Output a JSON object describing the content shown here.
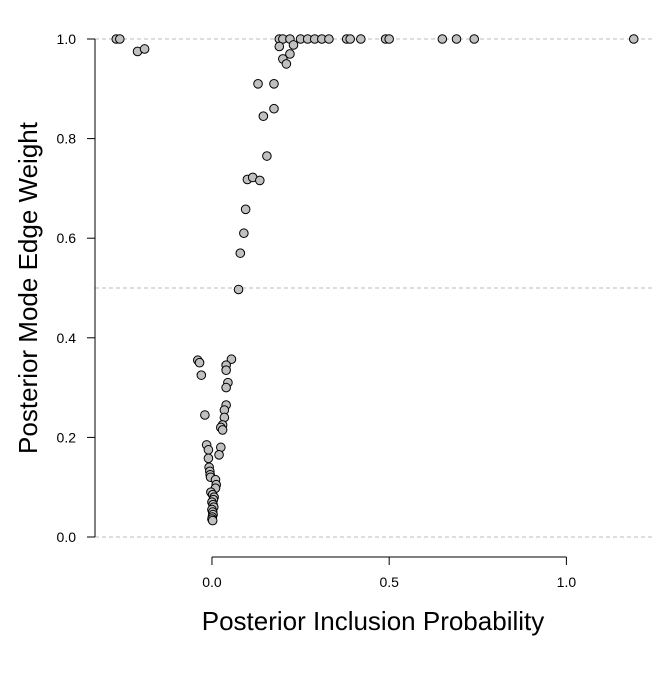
{
  "chart_data": {
    "type": "scatter",
    "xlabel": "Posterior Inclusion Probability",
    "ylabel": "Posterior Mode Edge Weight",
    "xlim": [
      -0.33,
      1.25
    ],
    "ylim": [
      0.0,
      1.0
    ],
    "x_ticks": [
      {
        "value": 0.0,
        "label": "0.0"
      },
      {
        "value": 0.5,
        "label": "0.5"
      },
      {
        "value": 1.0,
        "label": "1.0"
      }
    ],
    "y_ticks": [
      {
        "value": 0.0,
        "label": "0.0"
      },
      {
        "value": 0.2,
        "label": "0.2"
      },
      {
        "value": 0.4,
        "label": "0.4"
      },
      {
        "value": 0.6,
        "label": "0.6"
      },
      {
        "value": 0.8,
        "label": "0.8"
      },
      {
        "value": 1.0,
        "label": "1.0"
      }
    ],
    "reference_lines_y": [
      0.0,
      0.5,
      1.0
    ],
    "grid": false,
    "point_color": "#c0c0c0",
    "point_edge_color": "#000000",
    "reference_line_color": "#bdbdbd",
    "points": [
      {
        "x": -0.27,
        "y": 1.0
      },
      {
        "x": -0.26,
        "y": 1.0
      },
      {
        "x": -0.21,
        "y": 0.975
      },
      {
        "x": -0.19,
        "y": 0.98
      },
      {
        "x": 0.19,
        "y": 1.0
      },
      {
        "x": 0.2,
        "y": 1.0
      },
      {
        "x": 0.22,
        "y": 1.0
      },
      {
        "x": 0.25,
        "y": 1.0
      },
      {
        "x": 0.27,
        "y": 1.0
      },
      {
        "x": 0.29,
        "y": 1.0
      },
      {
        "x": 0.31,
        "y": 1.0
      },
      {
        "x": 0.33,
        "y": 1.0
      },
      {
        "x": 0.38,
        "y": 1.0
      },
      {
        "x": 0.39,
        "y": 1.0
      },
      {
        "x": 0.42,
        "y": 1.0
      },
      {
        "x": 0.49,
        "y": 1.0
      },
      {
        "x": 0.5,
        "y": 1.0
      },
      {
        "x": 0.65,
        "y": 1.0
      },
      {
        "x": 0.69,
        "y": 1.0
      },
      {
        "x": 0.74,
        "y": 1.0
      },
      {
        "x": 1.19,
        "y": 1.0
      },
      {
        "x": 0.19,
        "y": 0.985
      },
      {
        "x": 0.23,
        "y": 0.988
      },
      {
        "x": 0.22,
        "y": 0.97
      },
      {
        "x": 0.2,
        "y": 0.96
      },
      {
        "x": 0.21,
        "y": 0.95
      },
      {
        "x": 0.13,
        "y": 0.91
      },
      {
        "x": 0.175,
        "y": 0.91
      },
      {
        "x": 0.175,
        "y": 0.86
      },
      {
        "x": 0.145,
        "y": 0.845
      },
      {
        "x": 0.155,
        "y": 0.765
      },
      {
        "x": 0.1,
        "y": 0.718
      },
      {
        "x": 0.115,
        "y": 0.722
      },
      {
        "x": 0.135,
        "y": 0.716
      },
      {
        "x": 0.095,
        "y": 0.658
      },
      {
        "x": 0.09,
        "y": 0.61
      },
      {
        "x": 0.08,
        "y": 0.57
      },
      {
        "x": 0.075,
        "y": 0.497
      },
      {
        "x": -0.04,
        "y": 0.355
      },
      {
        "x": -0.035,
        "y": 0.35
      },
      {
        "x": 0.055,
        "y": 0.357
      },
      {
        "x": 0.04,
        "y": 0.345
      },
      {
        "x": 0.04,
        "y": 0.335
      },
      {
        "x": -0.03,
        "y": 0.325
      },
      {
        "x": 0.045,
        "y": 0.31
      },
      {
        "x": 0.04,
        "y": 0.3
      },
      {
        "x": 0.04,
        "y": 0.265
      },
      {
        "x": 0.035,
        "y": 0.255
      },
      {
        "x": -0.02,
        "y": 0.245
      },
      {
        "x": 0.035,
        "y": 0.24
      },
      {
        "x": 0.03,
        "y": 0.225
      },
      {
        "x": 0.025,
        "y": 0.22
      },
      {
        "x": 0.03,
        "y": 0.215
      },
      {
        "x": -0.015,
        "y": 0.185
      },
      {
        "x": 0.025,
        "y": 0.18
      },
      {
        "x": -0.01,
        "y": 0.175
      },
      {
        "x": 0.02,
        "y": 0.165
      },
      {
        "x": -0.01,
        "y": 0.158
      },
      {
        "x": -0.008,
        "y": 0.14
      },
      {
        "x": -0.006,
        "y": 0.132
      },
      {
        "x": -0.005,
        "y": 0.125
      },
      {
        "x": -0.004,
        "y": 0.12
      },
      {
        "x": 0.01,
        "y": 0.115
      },
      {
        "x": 0.012,
        "y": 0.105
      },
      {
        "x": 0.01,
        "y": 0.098
      },
      {
        "x": -0.003,
        "y": 0.09
      },
      {
        "x": 0.002,
        "y": 0.085
      },
      {
        "x": 0.006,
        "y": 0.08
      },
      {
        "x": 0.004,
        "y": 0.075
      },
      {
        "x": 0.0,
        "y": 0.07
      },
      {
        "x": 0.003,
        "y": 0.065
      },
      {
        "x": 0.005,
        "y": 0.06
      },
      {
        "x": 0.0,
        "y": 0.055
      },
      {
        "x": 0.002,
        "y": 0.05
      },
      {
        "x": 0.003,
        "y": 0.045
      },
      {
        "x": 0.001,
        "y": 0.04
      },
      {
        "x": 0.0,
        "y": 0.036
      },
      {
        "x": 0.002,
        "y": 0.033
      }
    ]
  }
}
